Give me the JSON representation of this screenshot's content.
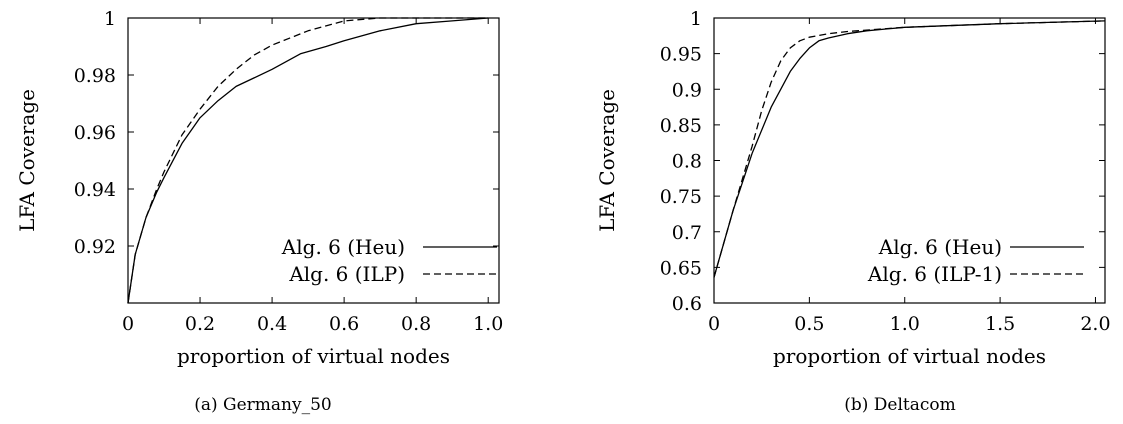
{
  "chart_data": [
    {
      "type": "line",
      "caption": "(a) Germany_50",
      "xlabel": "proportion of virtual nodes",
      "ylabel": "LFA Coverage",
      "xlim": [
        0,
        1.03
      ],
      "ylim": [
        0.9,
        1.0
      ],
      "xticks": [
        0,
        0.2,
        0.4,
        0.6,
        0.8,
        1.0
      ],
      "xticklabels": [
        "0",
        "0.2",
        "0.4",
        "0.6",
        "0.8",
        "1.0"
      ],
      "yticks": [
        0.92,
        0.94,
        0.96,
        0.98,
        1.0
      ],
      "yticklabels": [
        "0.92",
        "0.94",
        "0.96",
        "0.98",
        "1"
      ],
      "legend_position": "bottom-right",
      "series": [
        {
          "name": "Alg. 6 (Heu)",
          "style": "solid",
          "x": [
            0,
            0.02,
            0.05,
            0.08,
            0.1,
            0.15,
            0.2,
            0.25,
            0.3,
            0.35,
            0.4,
            0.48,
            0.55,
            0.6,
            0.7,
            0.8,
            0.9,
            1.0
          ],
          "y": [
            0.9,
            0.917,
            0.93,
            0.939,
            0.944,
            0.956,
            0.965,
            0.971,
            0.976,
            0.979,
            0.982,
            0.9875,
            0.99,
            0.992,
            0.9955,
            0.998,
            0.999,
            1.0
          ]
        },
        {
          "name": "Alg. 6 (ILP)",
          "style": "dashed",
          "x": [
            0,
            0.02,
            0.05,
            0.08,
            0.1,
            0.15,
            0.2,
            0.25,
            0.3,
            0.35,
            0.4,
            0.5,
            0.6,
            0.7,
            0.8,
            1.0
          ],
          "y": [
            0.9,
            0.917,
            0.93,
            0.94,
            0.946,
            0.959,
            0.968,
            0.976,
            0.982,
            0.987,
            0.9905,
            0.9955,
            0.999,
            1.0,
            1.0,
            1.0
          ]
        }
      ]
    },
    {
      "type": "line",
      "caption": "(b) Deltacom",
      "xlabel": "proportion of virtual nodes",
      "ylabel": "LFA Coverage",
      "xlim": [
        0,
        2.05
      ],
      "ylim": [
        0.6,
        1.0
      ],
      "xticks": [
        0,
        0.5,
        1.0,
        1.5,
        2.0
      ],
      "xticklabels": [
        "0",
        "0.5",
        "1.0",
        "1.5",
        "2.0"
      ],
      "yticks": [
        0.6,
        0.65,
        0.7,
        0.75,
        0.8,
        0.85,
        0.9,
        0.95,
        1.0
      ],
      "yticklabels": [
        "0.6",
        "0.65",
        "0.7",
        "0.75",
        "0.8",
        "0.85",
        "0.9",
        "0.95",
        "1"
      ],
      "legend_position": "bottom-right",
      "series": [
        {
          "name": "Alg. 6 (Heu)",
          "style": "solid",
          "x": [
            0,
            0.1,
            0.2,
            0.3,
            0.35,
            0.4,
            0.45,
            0.5,
            0.55,
            0.6,
            0.7,
            0.8,
            1.0,
            1.5,
            2.05
          ],
          "y": [
            0.636,
            0.73,
            0.81,
            0.875,
            0.9,
            0.925,
            0.943,
            0.958,
            0.968,
            0.972,
            0.978,
            0.982,
            0.987,
            0.992,
            0.996
          ]
        },
        {
          "name": "Alg. 6 (ILP-1)",
          "style": "dashed",
          "x": [
            0,
            0.1,
            0.2,
            0.25,
            0.3,
            0.35,
            0.4,
            0.45,
            0.5,
            0.6,
            0.7,
            0.85,
            1.0,
            1.5,
            2.05
          ],
          "y": [
            0.636,
            0.73,
            0.82,
            0.87,
            0.91,
            0.94,
            0.958,
            0.968,
            0.973,
            0.978,
            0.981,
            0.984,
            0.987,
            0.992,
            0.996
          ]
        }
      ]
    }
  ]
}
